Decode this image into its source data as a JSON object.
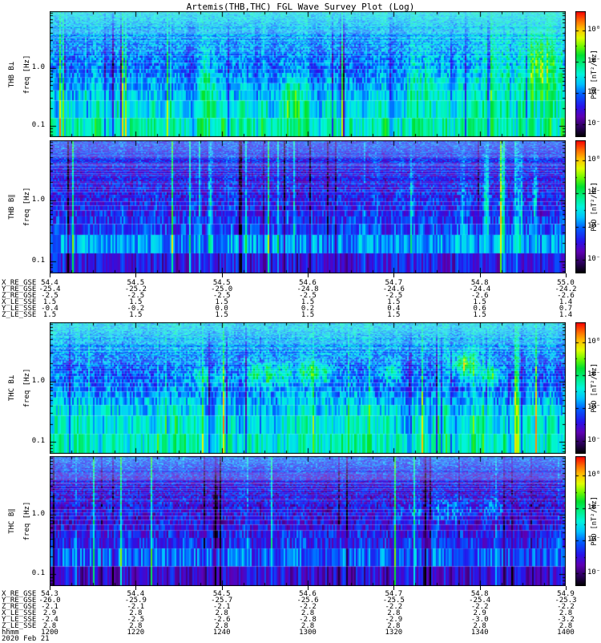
{
  "title": "Artemis(THB,THC) FGL Wave Survey Plot (Log)",
  "chart_data": {
    "type": "heatmap",
    "description": "Four time-frequency spectrogram panels of magnetic wave power spectral density (FGL fluxgate magnetometer survey) from ARTEMIS probes THB and THC, perpendicular and parallel field components, 1200-1400 UT on 2020 Feb 21. Log frequency axis, log rainbow color scale.",
    "x_axis": {
      "label": "hhmm",
      "ticks": [
        "1200",
        "1220",
        "1240",
        "1300",
        "1320",
        "1340",
        "1400"
      ],
      "date": "2020 Feb 21"
    },
    "y_axis": {
      "label": "freq [Hz]",
      "scale": "log",
      "tick_labels": [
        "1.0",
        "0.1"
      ],
      "approx_range_hz": [
        0.06,
        9.5
      ]
    },
    "colorbar": {
      "label": "PSD [nT²/Hz]",
      "tick_labels": [
        "10⁰",
        "10⁻²",
        "10⁻⁴",
        "10⁻⁶"
      ],
      "colormap": "rainbow: black-purple-blue-cyan-green-yellow-orange-red (low to high PSD)"
    },
    "panels": [
      {
        "label": "THB B⊥",
        "ylabel": "freq [Hz]",
        "y_ticks": [
          "1.0",
          "0.1"
        ],
        "colorbar_label": "PSD [nT²/Hz]",
        "colorbar_ticks": [
          "10⁰",
          "10⁻²",
          "10⁻⁴",
          "10⁻⁶"
        ],
        "character": "broadband cyan-green turbulence, PSD rising toward low frequency (~10⁻² nT²/Hz below 0.2 Hz), many bright green-yellow vertical streaks, strongest near 1340-1400"
      },
      {
        "label": "THB B∥",
        "ylabel": "freq [Hz]",
        "y_ticks": [
          "1.0",
          "0.1"
        ],
        "colorbar_label": "PSD [nT²/Hz]",
        "colorbar_ticks": [
          "10⁰",
          "10⁻²",
          "10⁻⁴",
          "10⁻⁶"
        ],
        "character": "weaker blue speckled power (~10⁻⁵ nT²/Hz), bright cyan band near 0.1-0.2 Hz, dark band at lowest frequencies, discrete green vertical streaks between 1340 and 1400"
      },
      {
        "label": "THC B⊥",
        "ylabel": "freq [Hz]",
        "y_ticks": [
          "1.0",
          "0.1"
        ],
        "colorbar_label": "PSD [nT²/Hz]",
        "colorbar_ticks": [
          "10⁰",
          "10⁻²",
          "10⁻⁴",
          "10⁻⁶"
        ],
        "character": "cyan-green broadband power with yellow enhancements (~10⁻¹ nT²/Hz) near 1 Hz around 1300-1320 and again near 1340-1350, green speckle at highest frequencies"
      },
      {
        "label": "THC B∥",
        "ylabel": "freq [Hz]",
        "y_ticks": [
          "1.0",
          "0.1"
        ],
        "colorbar_label": "PSD [nT²/Hz]",
        "colorbar_ticks": [
          "10⁰",
          "10⁻²",
          "10⁻⁴",
          "10⁻⁶"
        ],
        "character": "weak blue speckled power (~10⁻⁵ nT²/Hz), slightly enhanced green speckle at top frequencies, bright cyan band near 0.15 Hz, dark vertical gap near 1240"
      }
    ],
    "ephemeris_top": {
      "rows": [
        {
          "label": "X_RE_GSE",
          "values": [
            "54.4",
            "54.5",
            "54.5",
            "54.6",
            "54.7",
            "54.8",
            "55.0"
          ]
        },
        {
          "label": "Y_RE_GSE",
          "values": [
            "-25.4",
            "-25.2",
            "-25.0",
            "-24.8",
            "-24.6",
            "-24.4",
            "-24.2"
          ]
        },
        {
          "label": "Z_RE_GSE",
          "values": [
            "-2.5",
            "-2.5",
            "-2.5",
            "-2.5",
            "-2.5",
            "-2.6",
            "-2.6"
          ]
        },
        {
          "label": "X_LE_SSE",
          "values": [
            "1.5",
            "1.5",
            "1.5",
            "1.5",
            "1.5",
            "1.5",
            "1.4"
          ]
        },
        {
          "label": "Y_LE_SSE",
          "values": [
            "-0.4",
            "-0.2",
            "0.0",
            "0.2",
            "0.4",
            "0.6",
            "0.7"
          ]
        },
        {
          "label": "Z_LE_SSE",
          "values": [
            "1.5",
            "1.5",
            "1.5",
            "1.5",
            "1.5",
            "1.5",
            "1.4"
          ]
        }
      ]
    },
    "ephemeris_bottom": {
      "rows": [
        {
          "label": "X_RE_GSE",
          "values": [
            "54.3",
            "54.4",
            "54.5",
            "54.6",
            "54.7",
            "54.8",
            "54.9"
          ]
        },
        {
          "label": "Y_RE_GSE",
          "values": [
            "-26.0",
            "-25.9",
            "-25.7",
            "-25.6",
            "-25.5",
            "-25.4",
            "-25.3"
          ]
        },
        {
          "label": "Z_RE_GSE",
          "values": [
            "-2.1",
            "-2.1",
            "-2.1",
            "-2.2",
            "-2.2",
            "-2.2",
            "-2.2"
          ]
        },
        {
          "label": "X_LE_SSE",
          "values": [
            "2.9",
            "2.8",
            "2.8",
            "2.8",
            "2.8",
            "2.9",
            "2.8"
          ]
        },
        {
          "label": "Y_LE_SSE",
          "values": [
            "-2.4",
            "-2.5",
            "-2.6",
            "-2.8",
            "-2.9",
            "-3.0",
            "-3.2"
          ]
        },
        {
          "label": "Z_LE_SSE",
          "values": [
            "2.8",
            "2.8",
            "2.8",
            "2.8",
            "2.8",
            "2.8",
            "2.8"
          ]
        }
      ],
      "time_row": {
        "label": "hhmm",
        "values": [
          "1200",
          "1220",
          "1240",
          "1300",
          "1320",
          "1340",
          "1400"
        ]
      },
      "date": "2020 Feb 21"
    }
  }
}
